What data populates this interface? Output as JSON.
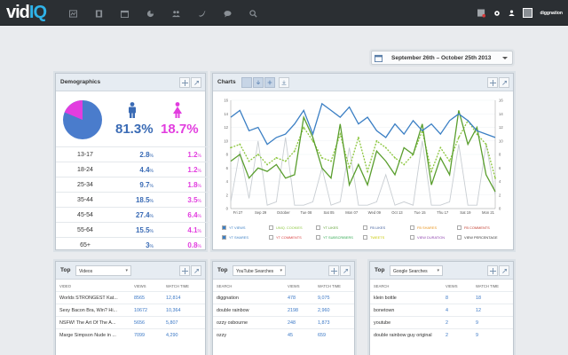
{
  "app": {
    "logo_a": "vid",
    "logo_b": "IQ",
    "user_name": "diggnation"
  },
  "nav": [
    "analytics-icon",
    "video-icon",
    "calendar-icon",
    "pie-chart-icon",
    "users-icon",
    "twitter-icon",
    "chat-icon",
    "search-icon"
  ],
  "date_range": "September 26th  –  October 25th 2013",
  "demographics": {
    "title": "Demographics",
    "male_pct": "81.3%",
    "female_pct": "18.7%",
    "pie": {
      "male_fraction": 0.813,
      "female_fraction": 0.187
    },
    "rows": [
      {
        "age": "13-17",
        "m": "2.8",
        "f": "1.2",
        "u": "%"
      },
      {
        "age": "18-24",
        "m": "4.4",
        "f": "1.2",
        "u": "%"
      },
      {
        "age": "25-34",
        "m": "9.7",
        "f": "1.8",
        "u": "%"
      },
      {
        "age": "35-44",
        "m": "18.5",
        "f": "3.5",
        "u": "%"
      },
      {
        "age": "45-54",
        "m": "27.4",
        "f": "6.4",
        "u": "%"
      },
      {
        "age": "55-64",
        "m": "15.5",
        "f": "4.1",
        "u": "%"
      },
      {
        "age": "65+",
        "m": "3",
        "f": "0.8",
        "u": "%"
      }
    ]
  },
  "charts": {
    "title": "Charts",
    "colors": {
      "blue": "#3b7fc4",
      "lime": "#8cc63f",
      "green": "#5a9e2e",
      "gray": "#c8cdd2"
    },
    "legend": [
      {
        "label": "YT VIEWS",
        "color": "#3b7fc4",
        "checked": true
      },
      {
        "label": "UNIQ. COOKIES",
        "color": "#8cc63f",
        "checked": false
      },
      {
        "label": "YT LIKES",
        "color": "#5a9e2e",
        "checked": false
      },
      {
        "label": "FB LIKES",
        "color": "#3b5998",
        "checked": false
      },
      {
        "label": "FB SHARES",
        "color": "#e8931a",
        "checked": false
      },
      {
        "label": "FB COMMENTS",
        "color": "#c0392b",
        "checked": false
      },
      {
        "label": "YT SHARES",
        "color": "#3b7fc4",
        "checked": true
      },
      {
        "label": "YT COMMENTS",
        "color": "#d94040",
        "checked": false
      },
      {
        "label": "YT SUBSCRIBERS",
        "color": "#2fa84f",
        "checked": false
      },
      {
        "label": "TWEETS",
        "color": "#c8c800",
        "checked": false
      },
      {
        "label": "VIEW DURATION",
        "color": "#8e44ad",
        "checked": false
      },
      {
        "label": "VIEW PERCENTAGE",
        "color": "#333333",
        "checked": false
      }
    ]
  },
  "chart_data": {
    "type": "line",
    "x": [
      "Fri 27",
      "Sat 28",
      "Sun 29",
      "Mon 30",
      "Tue 01",
      "Wed 02",
      "Thu 03",
      "Fri 04",
      "Sat 05",
      "Sun 06",
      "Mon 07",
      "Tue 08",
      "Wed 09",
      "Thu 10",
      "Fri 11",
      "Sat 12",
      "Sun 13",
      "Mon 14",
      "Tue 15",
      "Wed 16",
      "Thu 17",
      "Fri 18",
      "Sat 19",
      "Sun 20",
      "Mon 21",
      "Tue 22",
      "Wed 23",
      "Thu 24",
      "Fri 25",
      "Sat 26"
    ],
    "x_ticks": [
      "Fri 27",
      "Sep 29",
      "October",
      "Tue 08",
      "Sat 05",
      "Mon 07",
      "Wed 09",
      "Oct 13",
      "Tue 15",
      "Thu 17",
      "Sat 19",
      "Mon 21"
    ],
    "y_left_ticks": [
      "0",
      "2",
      "4",
      "6",
      "8",
      "10",
      "12",
      "14",
      "16"
    ],
    "y_right_ticks": [
      "0",
      "2",
      "4",
      "6",
      "8",
      "10",
      "12",
      "14",
      "16"
    ],
    "ylim": [
      0,
      16
    ],
    "series": [
      {
        "color": "#3b7fc4",
        "style": "solid",
        "values": [
          13.5,
          14.5,
          11.5,
          12,
          9.5,
          10.5,
          11,
          12.5,
          14.5,
          11,
          15.5,
          14.5,
          13.5,
          15,
          12.5,
          13.5,
          11.5,
          10.5,
          12.5,
          11,
          13,
          11.5,
          12.5,
          11,
          13,
          14,
          13,
          11.5,
          11,
          10.5
        ]
      },
      {
        "color": "#5a9e2e",
        "style": "solid",
        "values": [
          7,
          8,
          4.5,
          6,
          5.5,
          6.5,
          4.5,
          5,
          13.5,
          10.5,
          6,
          4.5,
          12.5,
          3.5,
          6.5,
          3.5,
          8.5,
          7,
          5,
          9,
          8,
          12.5,
          3.5,
          7.5,
          5,
          14.5,
          9.5,
          12,
          5,
          2.5
        ]
      },
      {
        "color": "#8cc63f",
        "style": "dashed",
        "values": [
          9,
          9.5,
          7,
          8,
          6.5,
          7.5,
          7,
          8.5,
          12,
          10,
          7.5,
          7,
          11,
          6,
          10.5,
          5.5,
          10,
          9,
          7.5,
          6.5,
          8,
          11.5,
          5.5,
          9,
          7,
          10.5,
          13,
          11,
          9.5,
          4.5
        ]
      },
      {
        "color": "#c8cdd2",
        "style": "solid",
        "values": [
          1,
          8.5,
          1.5,
          10,
          0.5,
          1,
          10.5,
          0.5,
          0.5,
          1,
          6,
          0.5,
          1,
          9,
          0.5,
          0.5,
          1,
          5,
          0.5,
          1,
          0.5,
          10,
          0.5,
          0.5,
          1,
          9.5,
          0.5,
          0.5,
          9.5,
          2
        ]
      }
    ]
  },
  "top_videos": {
    "label": "Top",
    "select": "Videos",
    "headers": [
      "VIDEO",
      "VIEWS",
      "WATCH TIME"
    ],
    "rows": [
      [
        "Worlds STRONGEST Kat...",
        "8565",
        "12,814"
      ],
      [
        "Sexy Bacon Bra, Win? Hi...",
        "10672",
        "10,364"
      ],
      [
        "NSFW! The Art Of The A...",
        "5656",
        "5,807"
      ],
      [
        "Marge Simpson Nude in ...",
        "7099",
        "4,290"
      ]
    ]
  },
  "top_yt_searches": {
    "label": "Top",
    "select": "YouTube Searches",
    "headers": [
      "SEARCH",
      "VIEWS",
      "WATCH TIME"
    ],
    "rows": [
      [
        "diggnation",
        "478",
        "9,075"
      ],
      [
        "double rainbow",
        "2198",
        "2,960"
      ],
      [
        "ozzy osbourne",
        "248",
        "1,873"
      ],
      [
        "ozzy",
        "45",
        "659"
      ]
    ]
  },
  "top_google_searches": {
    "label": "Top",
    "select": "Google Searches",
    "headers": [
      "SEARCH",
      "VIEWS",
      "WATCH TIME"
    ],
    "rows": [
      [
        "klein bottle",
        "8",
        "18"
      ],
      [
        "bonetown",
        "4",
        "12"
      ],
      [
        "youtube",
        "2",
        "9"
      ],
      [
        "double rainbow guy original",
        "2",
        "9"
      ]
    ]
  }
}
